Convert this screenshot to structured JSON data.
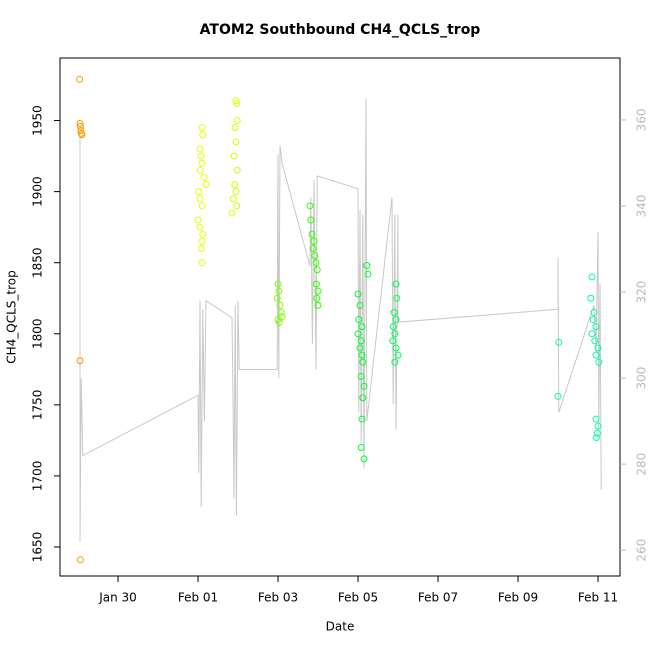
{
  "chart_data": {
    "type": "scatter",
    "title": "ATOM2 Southbound CH4_QCLS_trop",
    "xlabel": "Date",
    "ylabel": "CH4_QCLS_trop",
    "xlim": [
      28.55,
      42.55
    ],
    "xticks": [
      {
        "value": 30,
        "label": "Jan 30"
      },
      {
        "value": 32,
        "label": "Feb 01"
      },
      {
        "value": 34,
        "label": "Feb 03"
      },
      {
        "value": 36,
        "label": "Feb 05"
      },
      {
        "value": 38,
        "label": "Feb 07"
      },
      {
        "value": 40,
        "label": "Feb 09"
      },
      {
        "value": 42,
        "label": "Feb 11"
      }
    ],
    "ylim": [
      1629.6,
      1994
    ],
    "yticks": [
      1650,
      1700,
      1750,
      1800,
      1850,
      1900,
      1950
    ],
    "y2lim": [
      254,
      374.4
    ],
    "y2ticks": [
      260,
      280,
      300,
      320,
      340,
      360
    ],
    "series": [
      {
        "type": "line",
        "axis": "y2",
        "color": "#c8c8c8",
        "x": [
          29.05,
          29.05,
          29.08,
          29.12,
          32.0,
          32.02,
          32.05,
          32.08,
          32.12,
          32.16,
          32.2,
          32.85,
          32.87,
          32.9,
          32.93,
          32.96,
          33.0,
          33.03,
          33.98,
          34.0,
          34.02,
          34.05,
          34.1,
          34.8,
          34.82,
          34.86,
          34.9,
          34.95,
          34.98,
          36.0,
          36.02,
          36.05,
          36.08,
          36.12,
          36.15,
          36.2,
          36.22,
          36.85,
          36.88,
          36.92,
          36.95,
          37.0,
          37.0,
          41.0,
          41.0,
          41.02,
          41.9,
          41.95,
          42.0,
          42.02,
          42.05,
          42.08
        ],
        "values": [
          356,
          262,
          300,
          282,
          296,
          278,
          318,
          270,
          316,
          290,
          318,
          314,
          300,
          272,
          317,
          268,
          318,
          302,
          302,
          352,
          300,
          354,
          350,
          326,
          342,
          308,
          346,
          302,
          347,
          344,
          292,
          339,
          285,
          338,
          279,
          365,
          290,
          342,
          294,
          338,
          288,
          338,
          313,
          316,
          328,
          292,
          317,
          306,
          334,
          288,
          322,
          274
        ]
      },
      {
        "color": "#ff9900",
        "x": [
          29.04,
          29.05,
          29.06,
          29.07,
          29.08,
          29.1,
          29.05,
          29.06
        ],
        "values": [
          1979,
          1948,
          1946,
          1943,
          1941,
          1940,
          1781,
          1641
        ]
      },
      {
        "color": "#e6ff00",
        "x": [
          32.1,
          32.12,
          32.05,
          32.08,
          32.1,
          32.06,
          32.15,
          32.2,
          32.02,
          32.05,
          32.1,
          32.0,
          32.05,
          32.12,
          32.1,
          32.08,
          32.1
        ],
        "values": [
          1945,
          1940,
          1930,
          1925,
          1920,
          1915,
          1910,
          1905,
          1900,
          1895,
          1890,
          1880,
          1875,
          1870,
          1865,
          1860,
          1850
        ]
      },
      {
        "color": "#d4ff00",
        "x": [
          32.95,
          32.97,
          32.98,
          32.93,
          32.95,
          32.9,
          32.98,
          32.92,
          32.95,
          32.88,
          32.97,
          32.85
        ],
        "values": [
          1964,
          1962,
          1950,
          1945,
          1935,
          1925,
          1915,
          1905,
          1900,
          1895,
          1890,
          1885
        ]
      },
      {
        "color": "#7fff00",
        "x": [
          34.0,
          34.02,
          33.98,
          34.05,
          34.08,
          34.1,
          34.0,
          34.03
        ],
        "values": [
          1835,
          1830,
          1825,
          1820,
          1815,
          1812,
          1810,
          1808
        ]
      },
      {
        "color": "#33ff00",
        "x": [
          34.8,
          34.82,
          34.85,
          34.9,
          34.88,
          34.92,
          34.95,
          34.98,
          34.96,
          35.0,
          34.97,
          35.0
        ],
        "values": [
          1890,
          1880,
          1870,
          1865,
          1860,
          1855,
          1850,
          1845,
          1835,
          1830,
          1825,
          1820
        ]
      },
      {
        "color": "#00ff33",
        "x": [
          36.0,
          36.05,
          36.02,
          36.1,
          36.0,
          36.08,
          36.05,
          36.1,
          36.12,
          36.08,
          36.15,
          36.12,
          36.1,
          36.08,
          36.15,
          36.22,
          36.25
        ],
        "values": [
          1828,
          1820,
          1810,
          1805,
          1800,
          1795,
          1790,
          1785,
          1780,
          1770,
          1763,
          1755,
          1740,
          1720,
          1712,
          1848,
          1842
        ]
      },
      {
        "color": "#00ff55",
        "x": [
          36.95,
          36.97,
          36.9,
          36.95,
          36.88,
          36.92,
          36.87,
          36.95,
          37.0,
          36.92
        ],
        "values": [
          1835,
          1825,
          1815,
          1810,
          1805,
          1800,
          1795,
          1790,
          1785,
          1780
        ]
      },
      {
        "color": "#00ffaa",
        "x": [
          41.02,
          41.0,
          41.85,
          41.82,
          41.9,
          41.88,
          41.95,
          41.85,
          41.92,
          42.0,
          41.95,
          42.02,
          41.95,
          42.0,
          41.98,
          41.96
        ],
        "values": [
          1794,
          1756,
          1840,
          1825,
          1815,
          1810,
          1805,
          1800,
          1795,
          1790,
          1785,
          1780,
          1740,
          1735,
          1730,
          1727
        ]
      }
    ]
  }
}
